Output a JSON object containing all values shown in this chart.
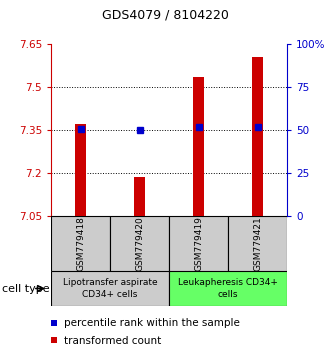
{
  "title": "GDS4079 / 8104220",
  "samples": [
    "GSM779418",
    "GSM779420",
    "GSM779419",
    "GSM779421"
  ],
  "bar_values": [
    7.37,
    7.185,
    7.535,
    7.605
  ],
  "bar_bottom": 7.05,
  "percentile_values": [
    7.355,
    7.349,
    7.36,
    7.36
  ],
  "ylim_left": [
    7.05,
    7.65
  ],
  "ylim_right": [
    0,
    100
  ],
  "yticks_left": [
    7.05,
    7.2,
    7.35,
    7.5,
    7.65
  ],
  "yticks_right": [
    0,
    25,
    50,
    75,
    100
  ],
  "ytick_labels_left": [
    "7.05",
    "7.2",
    "7.35",
    "7.5",
    "7.65"
  ],
  "ytick_labels_right": [
    "0",
    "25",
    "50",
    "75",
    "100%"
  ],
  "bar_color": "#cc0000",
  "percentile_color": "#0000cc",
  "group1_label": "Lipotransfer aspirate\nCD34+ cells",
  "group2_label": "Leukapheresis CD34+\ncells",
  "group1_color": "#cccccc",
  "group2_color": "#66ff66",
  "cell_type_label": "cell type",
  "legend_bar_label": "transformed count",
  "legend_pct_label": "percentile rank within the sample",
  "bar_width": 0.18,
  "bg_color": "#ffffff",
  "left_tick_color": "#cc0000",
  "right_tick_color": "#0000cc",
  "title_fontsize": 9,
  "tick_fontsize": 7.5,
  "sample_fontsize": 6.5,
  "group_fontsize": 6.5,
  "legend_fontsize": 7.5
}
